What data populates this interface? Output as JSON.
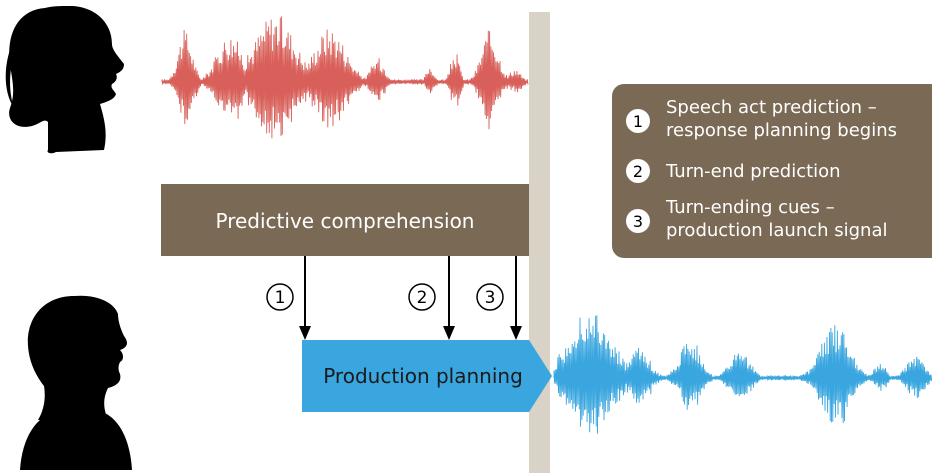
{
  "diagram": {
    "comprehension_box": {
      "label": "Predictive comprehension"
    },
    "production_box": {
      "label": "Production planning"
    },
    "markers": [
      {
        "number": "1"
      },
      {
        "number": "2"
      },
      {
        "number": "3"
      }
    ],
    "legend": [
      {
        "number": "1",
        "line1": "Speech act prediction –",
        "line2": "response planning begins"
      },
      {
        "number": "2",
        "line1": "Turn-end prediction",
        "line2": ""
      },
      {
        "number": "3",
        "line1": "Turn-ending cues –",
        "line2": "production launch signal"
      }
    ],
    "colors": {
      "speaker_wave": "#d9605a",
      "listener_wave": "#3aa6df",
      "comprehension_box": "#7a6a55",
      "legend_box": "#7a6a55",
      "production_box": "#3aa6df",
      "divider": "#d9d2c6",
      "silhouette": "#000000"
    }
  }
}
